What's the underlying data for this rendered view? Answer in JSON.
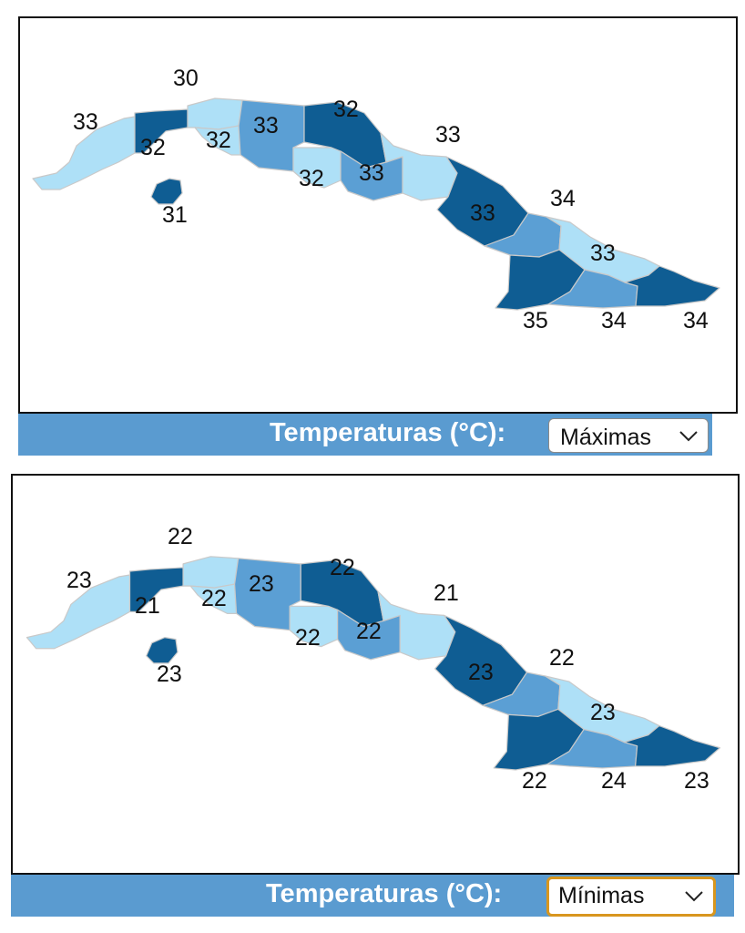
{
  "colors": {
    "level_light": "#aee0f7",
    "level_mid": "#5b9fd4",
    "level_dark": "#0f5d93",
    "bar": "#5a9bd0",
    "frame": "#111111",
    "focus_ring": "#d8961e"
  },
  "maps": [
    {
      "legend_label": "Temperaturas (°C):",
      "selector": {
        "selected": "Máximas",
        "icon": "chevron-down-icon",
        "focused": false
      },
      "provinces": [
        {
          "id": "pinar-del-rio",
          "value": "33",
          "shade": "light"
        },
        {
          "id": "artemisa",
          "value": "32",
          "shade": "dark"
        },
        {
          "id": "la-habana",
          "value": "30",
          "shade": "light"
        },
        {
          "id": "mayabeque",
          "value": "32",
          "shade": "light"
        },
        {
          "id": "matanzas",
          "value": "33",
          "shade": "mid"
        },
        {
          "id": "cienfuegos",
          "value": "32",
          "shade": "light"
        },
        {
          "id": "villa-clara",
          "value": "32",
          "shade": "dark"
        },
        {
          "id": "sancti-spiritus",
          "value": "33",
          "shade": "mid"
        },
        {
          "id": "ciego-de-avila",
          "value": "33",
          "shade": "light"
        },
        {
          "id": "camaguey",
          "value": "33",
          "shade": "dark"
        },
        {
          "id": "las-tunas",
          "value": "34",
          "shade": "mid"
        },
        {
          "id": "holguin",
          "value": "33",
          "shade": "light"
        },
        {
          "id": "granma",
          "value": "35",
          "shade": "dark"
        },
        {
          "id": "santiago-de-cuba",
          "value": "34",
          "shade": "mid"
        },
        {
          "id": "guantanamo",
          "value": "34",
          "shade": "dark"
        },
        {
          "id": "isla-de-la-juventud",
          "value": "31",
          "shade": "dark"
        }
      ]
    },
    {
      "legend_label": "Temperaturas (°C):",
      "selector": {
        "selected": "Mínimas",
        "icon": "chevron-down-icon",
        "focused": true
      },
      "provinces": [
        {
          "id": "pinar-del-rio",
          "value": "23",
          "shade": "light"
        },
        {
          "id": "artemisa",
          "value": "21",
          "shade": "dark"
        },
        {
          "id": "la-habana",
          "value": "22",
          "shade": "light"
        },
        {
          "id": "mayabeque",
          "value": "22",
          "shade": "light"
        },
        {
          "id": "matanzas",
          "value": "23",
          "shade": "mid"
        },
        {
          "id": "cienfuegos",
          "value": "22",
          "shade": "light"
        },
        {
          "id": "villa-clara",
          "value": "22",
          "shade": "dark"
        },
        {
          "id": "sancti-spiritus",
          "value": "22",
          "shade": "mid"
        },
        {
          "id": "ciego-de-avila",
          "value": "21",
          "shade": "light"
        },
        {
          "id": "camaguey",
          "value": "23",
          "shade": "dark"
        },
        {
          "id": "las-tunas",
          "value": "22",
          "shade": "mid"
        },
        {
          "id": "holguin",
          "value": "23",
          "shade": "light"
        },
        {
          "id": "granma",
          "value": "22",
          "shade": "dark"
        },
        {
          "id": "santiago-de-cuba",
          "value": "24",
          "shade": "mid"
        },
        {
          "id": "guantanamo",
          "value": "23",
          "shade": "dark"
        },
        {
          "id": "isla-de-la-juventud",
          "value": "23",
          "shade": "dark"
        }
      ]
    }
  ]
}
